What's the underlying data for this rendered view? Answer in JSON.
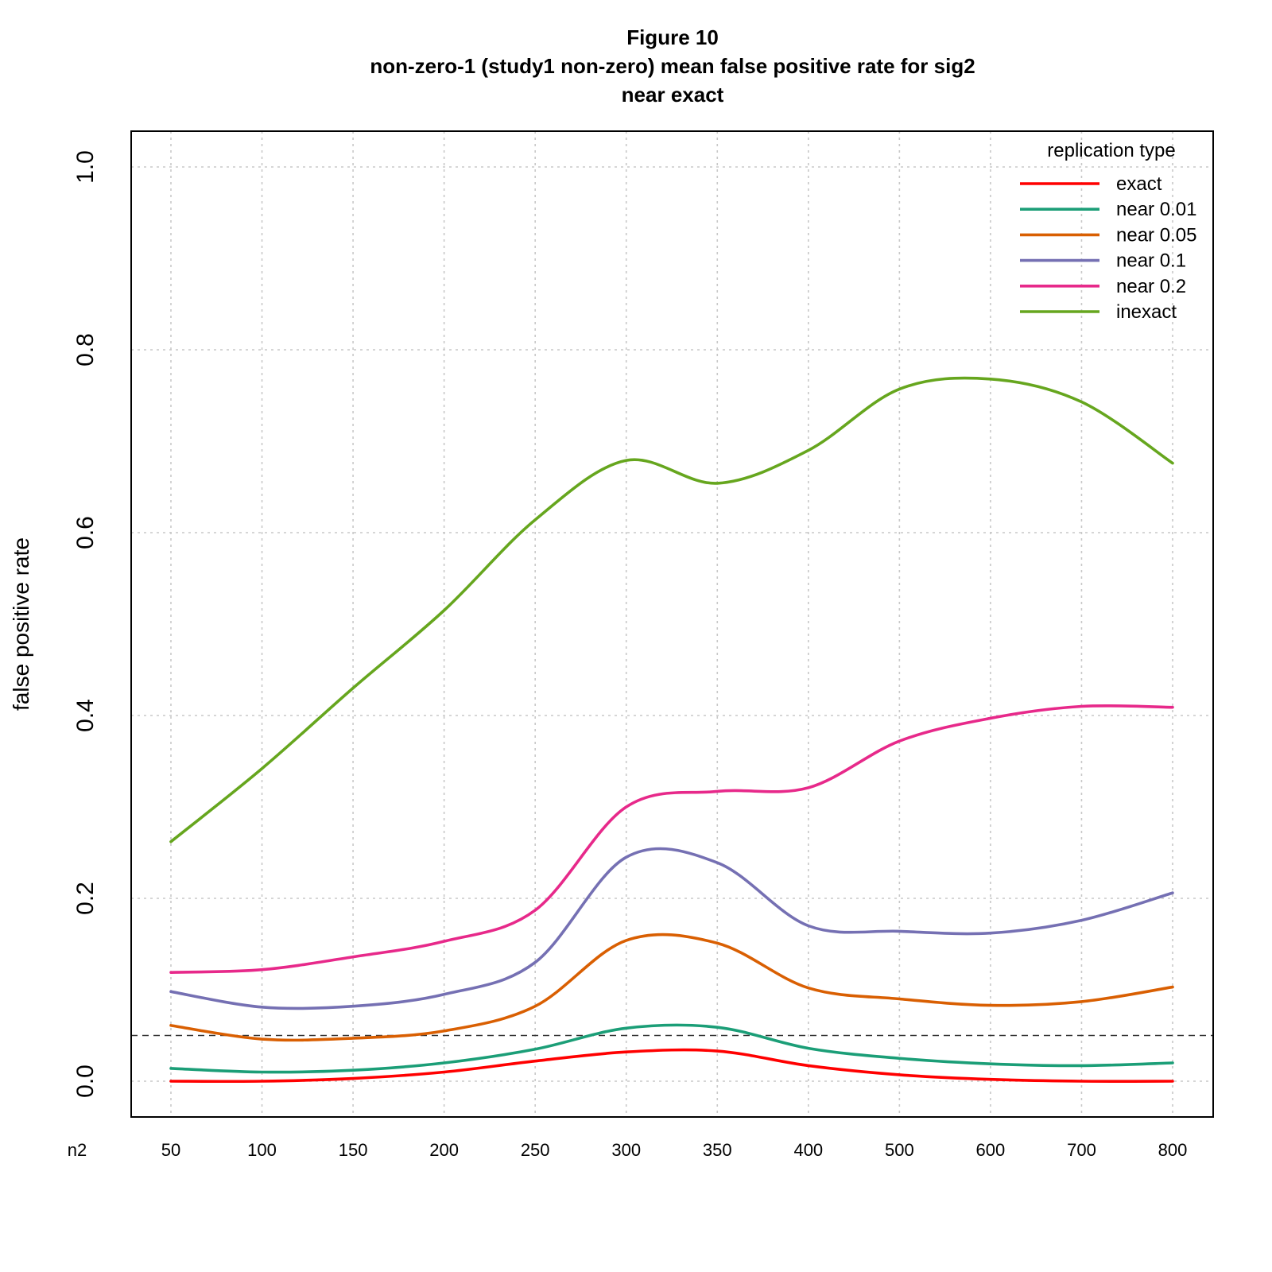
{
  "chart_data": {
    "type": "line",
    "title_lines": [
      "Figure 10",
      "non-zero-1 (study1 non-zero) mean false positive rate for sig2",
      "near exact"
    ],
    "xlabel": "n2",
    "ylabel": "false positive rate",
    "x_categories": [
      "50",
      "100",
      "150",
      "200",
      "250",
      "300",
      "350",
      "400",
      "500",
      "600",
      "700",
      "800"
    ],
    "y_ticks": [
      "0.0",
      "0.2",
      "0.4",
      "0.6",
      "0.8",
      "1.0"
    ],
    "y_tick_values": [
      0.0,
      0.2,
      0.4,
      0.6,
      0.8,
      1.0
    ],
    "ylim": [
      -0.04,
      1.04
    ],
    "grid": true,
    "reference_line": 0.05,
    "legend": {
      "title": "replication type",
      "position": "top-right"
    },
    "series": [
      {
        "name": "exact",
        "color": "#ff0000",
        "values": [
          0.0,
          0.0,
          0.003,
          0.01,
          0.022,
          0.032,
          0.033,
          0.017,
          0.007,
          0.002,
          0.0,
          0.0
        ]
      },
      {
        "name": "near 0.01",
        "color": "#1b9e77",
        "values": [
          0.014,
          0.01,
          0.012,
          0.02,
          0.035,
          0.058,
          0.059,
          0.036,
          0.025,
          0.019,
          0.017,
          0.02
        ]
      },
      {
        "name": "near 0.05",
        "color": "#d95f02",
        "values": [
          0.061,
          0.046,
          0.047,
          0.055,
          0.082,
          0.154,
          0.151,
          0.102,
          0.09,
          0.083,
          0.087,
          0.103
        ]
      },
      {
        "name": "near 0.1",
        "color": "#7570b3",
        "values": [
          0.098,
          0.081,
          0.082,
          0.095,
          0.13,
          0.245,
          0.239,
          0.17,
          0.164,
          0.162,
          0.176,
          0.206
        ]
      },
      {
        "name": "near 0.2",
        "color": "#e7298a",
        "values": [
          0.119,
          0.122,
          0.136,
          0.153,
          0.187,
          0.3,
          0.317,
          0.321,
          0.372,
          0.397,
          0.41,
          0.409
        ]
      },
      {
        "name": "inexact",
        "color": "#66a61e",
        "values": [
          0.262,
          0.342,
          0.43,
          0.515,
          0.614,
          0.679,
          0.654,
          0.69,
          0.757,
          0.768,
          0.743,
          0.676
        ]
      }
    ]
  }
}
